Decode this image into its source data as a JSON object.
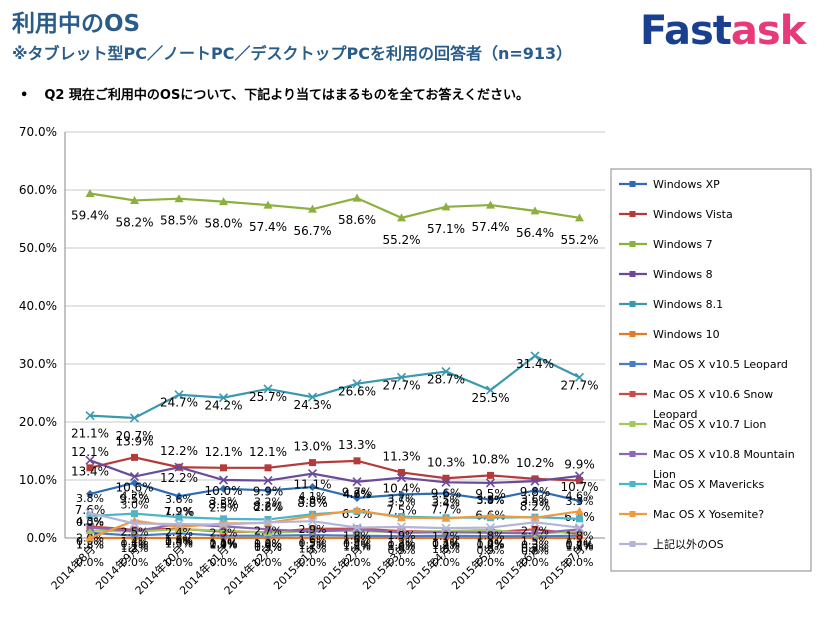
{
  "header": {
    "title": "利用中のOS",
    "subtitle": "※タブレット型PC／ノートPC／デスクトップPCを利用の回答者（n=913）",
    "logo_part1": "Fast",
    "logo_part2": "ask",
    "question_bullet": "•",
    "question": "Q2 現在ご利用中のOSについて、下記より当てはまるものを全てお答えください。"
  },
  "chart_data": {
    "type": "line",
    "categories": [
      "2014年8月",
      "2014年9月",
      "2014年10月",
      "2014年11月",
      "2014年12月",
      "2015年1月",
      "2015年2月",
      "2015年3月",
      "2015年4月",
      "2015年5月",
      "2015年6月",
      "2015年7月"
    ],
    "ylim": [
      0,
      70
    ],
    "yticks": [
      "0.0%",
      "10.0%",
      "20.0%",
      "30.0%",
      "40.0%",
      "50.0%",
      "60.0%",
      "70.0%"
    ],
    "grid": true,
    "legend_position": "right",
    "series": [
      {
        "name": "Windows XP",
        "color": "#2e6db4",
        "values": [
          7.6,
          9.5,
          7.2,
          8.5,
          8.2,
          8.8,
          6.9,
          7.5,
          7.7,
          6.6,
          8.2,
          6.4
        ]
      },
      {
        "name": "Windows Vista",
        "color": "#b53a3a",
        "values": [
          12.1,
          13.9,
          12.2,
          12.1,
          12.1,
          13.0,
          13.3,
          11.3,
          10.3,
          10.8,
          10.2,
          9.9
        ]
      },
      {
        "name": "Windows 7",
        "color": "#8cb03d",
        "values": [
          59.4,
          58.2,
          58.5,
          58.0,
          57.4,
          56.7,
          58.6,
          55.2,
          57.1,
          57.4,
          56.4,
          55.2
        ]
      },
      {
        "name": "Windows 8",
        "color": "#6b4a9a",
        "values": [
          13.4,
          10.6,
          12.2,
          10.0,
          9.9,
          11.1,
          9.7,
          10.4,
          9.6,
          9.5,
          9.8,
          10.7
        ]
      },
      {
        "name": "Windows 8.1",
        "color": "#3a99ae",
        "values": [
          21.1,
          20.7,
          24.7,
          24.2,
          25.7,
          24.3,
          26.6,
          27.7,
          28.7,
          25.5,
          31.4,
          27.7
        ]
      },
      {
        "name": "Windows 10",
        "color": "#e07b2a",
        "values": [
          0.0,
          0.0,
          0.0,
          0.0,
          0.0,
          0.0,
          0.0,
          0.0,
          0.0,
          0.0,
          0.0,
          0.0
        ]
      },
      {
        "name": "Mac OS X v10.5 Leopard",
        "color": "#4a7bc4",
        "values": [
          0.9,
          0.4,
          0.8,
          0.4,
          0.4,
          0.5,
          0.4,
          0.3,
          0.4,
          0.3,
          0.3,
          0.4
        ]
      },
      {
        "name": "Mac OS X v10.6 Snow Leopard",
        "color": "#c94a4a",
        "values": [
          2.0,
          1.4,
          1.6,
          1.1,
          1.0,
          1.6,
          1.6,
          1.2,
          1.1,
          1.0,
          1.5,
          0.7
        ]
      },
      {
        "name": "Mac OS X v10.7 Lion",
        "color": "#a4c95a",
        "values": [
          1.3,
          1.1,
          1.5,
          1.3,
          0.9,
          1.2,
          1.2,
          1.0,
          1.2,
          1.4,
          0.7,
          1.2
        ]
      },
      {
        "name": "Mac OS X v10.8 Mountain Lion",
        "color": "#8a6ab4",
        "values": [
          1.8,
          1.2,
          2.4,
          2.0,
          1.5,
          1.1,
          1.5,
          0.9,
          1.0,
          0.9,
          0.8,
          1.5
        ]
      },
      {
        "name": "Mac OS X Mavericks",
        "color": "#4bb5c9",
        "values": [
          3.8,
          4.2,
          3.6,
          3.3,
          3.2,
          4.1,
          4.6,
          3.7,
          3.5,
          3.5,
          3.6,
          3.3
        ]
      },
      {
        "name": "Mac OS X Yosemite?",
        "color": "#f09a40",
        "values": [
          0.0,
          3.0,
          1.9,
          2.5,
          2.6,
          3.8,
          4.8,
          3.5,
          3.4,
          3.8,
          3.5,
          4.6
        ]
      },
      {
        "name": "上記以外のOS",
        "color": "#b4b4d8",
        "values": [
          4.3,
          2.5,
          2.4,
          2.3,
          2.7,
          2.9,
          1.8,
          1.9,
          1.7,
          1.8,
          2.7,
          1.8
        ]
      }
    ],
    "labeled_series": [
      "Windows XP",
      "Windows Vista",
      "Windows 7",
      "Windows 8",
      "Windows 8.1",
      "Windows 10",
      "Mac OS X v10.5 Leopard",
      "Mac OS X v10.6 Snow Leopard",
      "Mac OS X v10.7 Lion",
      "Mac OS X v10.8 Mountain Lion",
      "Mac OS X Mavericks",
      "Mac OS X Yosemite?",
      "上記以外のOS"
    ]
  }
}
